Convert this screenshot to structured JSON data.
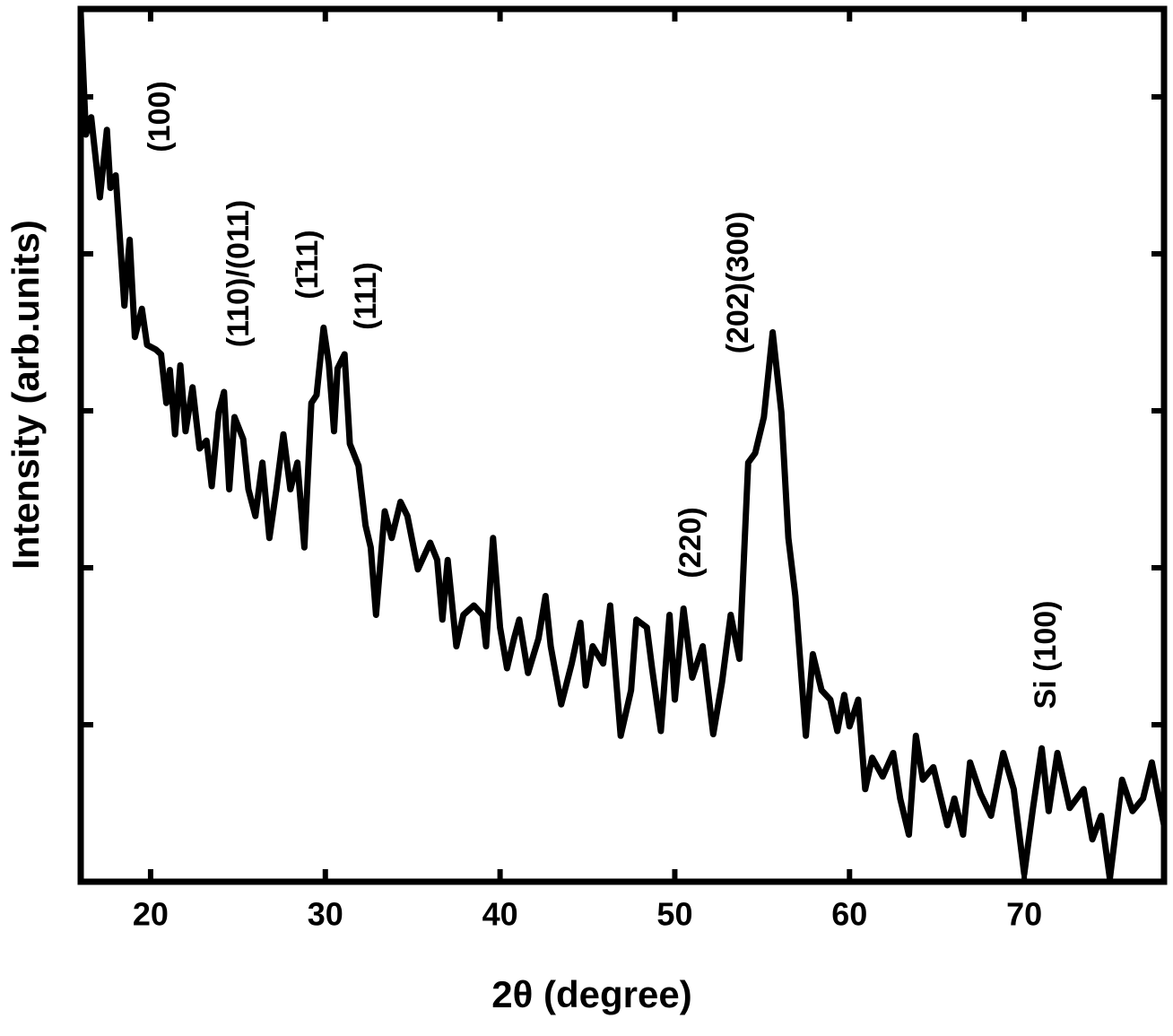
{
  "chart_data": {
    "type": "line",
    "xlabel": "2θ (degree)",
    "ylabel": "Intensity (arb.units)",
    "xlim": [
      16,
      78
    ],
    "xticks": [
      20,
      30,
      40,
      50,
      60,
      70
    ],
    "ylim": [
      0,
      5.56
    ],
    "yticks": [
      1,
      2,
      3,
      4,
      5
    ],
    "annotations": [
      "(100)",
      "(110)/(011)",
      "(1̄11)",
      "(111)",
      "(220)",
      "(202)(300)",
      "Si (100)"
    ],
    "x": [
      16.0,
      16.3,
      16.6,
      17.1,
      17.5,
      17.7,
      18.0,
      18.5,
      18.8,
      19.1,
      19.5,
      19.8,
      20.3,
      20.6,
      20.9,
      21.1,
      21.4,
      21.7,
      22.0,
      22.4,
      22.8,
      23.2,
      23.5,
      23.9,
      24.2,
      24.5,
      24.8,
      25.3,
      25.6,
      26.0,
      26.4,
      26.8,
      27.2,
      27.6,
      28.0,
      28.4,
      28.8,
      29.2,
      29.5,
      29.9,
      30.2,
      30.5,
      30.7,
      31.1,
      31.4,
      31.9,
      32.3,
      32.6,
      32.9,
      33.4,
      33.8,
      34.3,
      34.7,
      35.3,
      36.0,
      36.4,
      36.7,
      37.0,
      37.5,
      37.9,
      38.5,
      39.0,
      39.2,
      39.6,
      40.0,
      40.4,
      40.8,
      41.1,
      41.6,
      42.2,
      42.6,
      42.9,
      43.5,
      44.1,
      44.6,
      44.9,
      45.3,
      45.9,
      46.3,
      46.9,
      47.5,
      47.8,
      48.4,
      48.7,
      49.2,
      49.7,
      50.0,
      50.5,
      51.0,
      51.6,
      52.2,
      52.7,
      53.2,
      53.7,
      54.2,
      54.6,
      55.1,
      55.6,
      56.1,
      56.5,
      56.9,
      57.5,
      57.9,
      58.4,
      58.9,
      59.3,
      59.7,
      60.0,
      60.5,
      60.9,
      61.3,
      61.9,
      62.5,
      62.9,
      63.4,
      63.8,
      64.2,
      64.8,
      65.6,
      66.0,
      66.5,
      66.9,
      67.5,
      68.1,
      68.8,
      69.4,
      70.0,
      70.5,
      71.0,
      71.4,
      71.9,
      72.6,
      73.4,
      73.9,
      74.4,
      74.9,
      75.6,
      76.2,
      76.8,
      77.3,
      78.0
    ],
    "series": [
      {
        "color": "#000000",
        "values": [
          5.53,
          4.76,
          4.87,
          4.36,
          4.79,
          4.42,
          4.5,
          3.67,
          4.09,
          3.47,
          3.65,
          3.42,
          3.39,
          3.36,
          3.05,
          3.26,
          2.85,
          3.29,
          2.87,
          3.15,
          2.76,
          2.81,
          2.52,
          2.99,
          3.12,
          2.5,
          2.96,
          2.82,
          2.5,
          2.33,
          2.67,
          2.19,
          2.5,
          2.85,
          2.5,
          2.67,
          2.13,
          3.05,
          3.1,
          3.53,
          3.3,
          2.87,
          3.27,
          3.36,
          2.79,
          2.65,
          2.27,
          2.13,
          1.7,
          2.36,
          2.19,
          2.42,
          2.33,
          1.99,
          2.16,
          2.05,
          1.67,
          2.05,
          1.5,
          1.7,
          1.76,
          1.7,
          1.5,
          2.19,
          1.62,
          1.36,
          1.55,
          1.67,
          1.33,
          1.55,
          1.82,
          1.5,
          1.13,
          1.39,
          1.65,
          1.25,
          1.5,
          1.39,
          1.76,
          0.93,
          1.22,
          1.67,
          1.62,
          1.36,
          0.96,
          1.7,
          1.16,
          1.74,
          1.3,
          1.5,
          0.94,
          1.27,
          1.7,
          1.42,
          2.67,
          2.73,
          2.96,
          3.5,
          2.99,
          2.19,
          1.82,
          0.93,
          1.45,
          1.22,
          1.16,
          0.96,
          1.19,
          0.99,
          1.16,
          0.59,
          0.79,
          0.67,
          0.82,
          0.53,
          0.3,
          0.93,
          0.65,
          0.73,
          0.36,
          0.53,
          0.3,
          0.76,
          0.56,
          0.42,
          0.82,
          0.59,
          0.05,
          0.47,
          0.85,
          0.45,
          0.82,
          0.47,
          0.59,
          0.27,
          0.42,
          0.02,
          0.65,
          0.45,
          0.53,
          0.76,
          0.36
        ]
      }
    ]
  }
}
